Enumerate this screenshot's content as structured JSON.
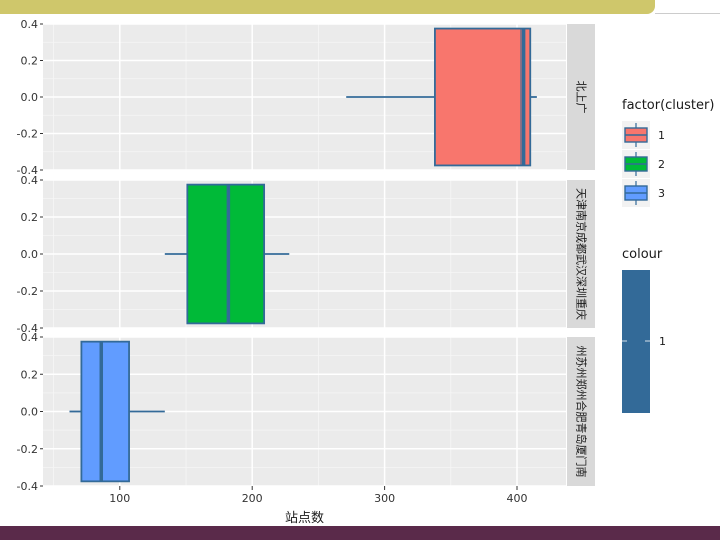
{
  "chart_data": {
    "type": "boxplot",
    "xlabel": "站点数",
    "ylabel": "",
    "xlim": [
      42,
      437
    ],
    "ylim": [
      -0.4,
      0.4
    ],
    "x_ticks": [
      100,
      200,
      300,
      400
    ],
    "y_ticks": [
      -0.4,
      -0.2,
      0.0,
      0.2,
      0.4
    ],
    "y_tick_labels": [
      "-0.4",
      "-0.2",
      "0.0",
      "0.2",
      "0.4"
    ],
    "grid": true,
    "panels": [
      {
        "strip": "北上广",
        "cluster": "1",
        "box": {
          "whisker_low": 271,
          "q1": 338,
          "median": 405,
          "q3": 410,
          "whisker_high": 415,
          "notch_right": 403
        }
      },
      {
        "strip": "天津南京成都武汉深圳重庆",
        "cluster": "2",
        "box": {
          "whisker_low": 134,
          "q1": 151,
          "median": 182,
          "q3": 209,
          "whisker_high": 228
        }
      },
      {
        "strip": "州苏州郑州合肥青岛厦门南",
        "cluster": "3",
        "box": {
          "whisker_low": 62,
          "q1": 71,
          "median": 86,
          "q3": 107,
          "whisker_high": 134
        }
      }
    ],
    "legend": {
      "placement": "right",
      "fill_title": "factor(cluster)",
      "fill_items": [
        {
          "label": "1",
          "color": "#f8766d"
        },
        {
          "label": "2",
          "color": "#00ba38"
        },
        {
          "label": "3",
          "color": "#619cff"
        }
      ],
      "colour_title": "colour",
      "colour_items": [
        {
          "label": "1",
          "color": "#336a98"
        }
      ]
    },
    "colors": {
      "panel_bg": "#ebebeb",
      "strip_bg": "#d9d9d9",
      "grid_major": "#ffffff",
      "outline": "#336a98"
    }
  }
}
